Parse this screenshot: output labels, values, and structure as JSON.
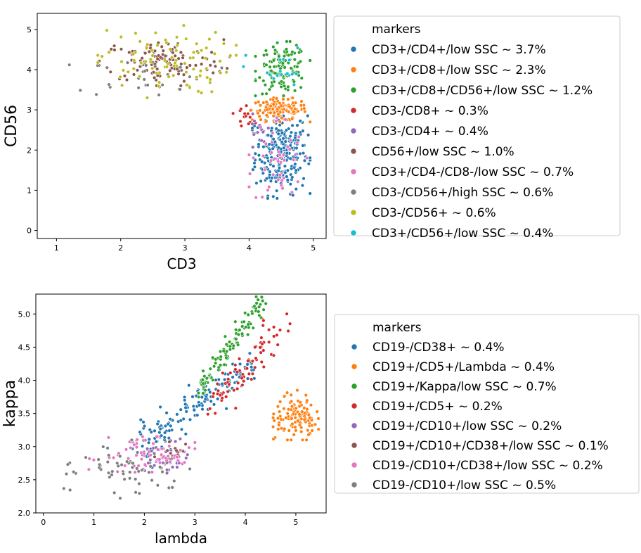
{
  "chart_data": [
    {
      "type": "scatter",
      "xlabel": "CD3",
      "ylabel": "CD56",
      "xlim": [
        0.7,
        5.2
      ],
      "ylim": [
        -0.2,
        5.4
      ],
      "xticks": [
        1,
        2,
        3,
        4,
        5
      ],
      "yticks": [
        0,
        1,
        2,
        3,
        4,
        5
      ],
      "grid": false,
      "legend_position": "right",
      "legend_title": "markers",
      "series": [
        {
          "name": "CD3+/CD4+/low SSC ~ 3.7%",
          "color": "#1f77b4",
          "x_range": [
            4.05,
            4.95
          ],
          "y_range": [
            0.8,
            3.1
          ],
          "n": 260
        },
        {
          "name": "CD3+/CD8+/low SSC ~ 2.3%",
          "color": "#ff7f0e",
          "x_range": [
            4.0,
            4.95
          ],
          "y_range": [
            2.7,
            3.3
          ],
          "n": 140
        },
        {
          "name": "CD3+/CD8+/CD56+/low SSC ~ 1.2%",
          "color": "#2ca02c",
          "x_range": [
            4.1,
            4.95
          ],
          "y_range": [
            3.35,
            4.7
          ],
          "n": 120
        },
        {
          "name": "CD3-/CD8+ ~ 0.3%",
          "color": "#d62728",
          "x_range": [
            3.75,
            4.1
          ],
          "y_range": [
            2.6,
            3.2
          ],
          "n": 14
        },
        {
          "name": "CD3-/CD4+ ~ 0.4%",
          "color": "#9467bd",
          "x_range": [
            3.95,
            4.3
          ],
          "y_range": [
            1.8,
            2.9
          ],
          "n": 16
        },
        {
          "name": "CD56+/low SSC ~ 1.0%",
          "color": "#8c564b",
          "x_range": [
            1.6,
            3.7
          ],
          "y_range": [
            3.6,
            4.8
          ],
          "n": 110
        },
        {
          "name": "CD3+/CD4-/CD8-/low SSC ~ 0.7%",
          "color": "#e377c2",
          "x_range": [
            4.0,
            4.9
          ],
          "y_range": [
            0.5,
            3.0
          ],
          "n": 50
        },
        {
          "name": "CD3-/CD56+/high SSC ~ 0.6%",
          "color": "#7f7f7f",
          "x_range": [
            1.2,
            3.6
          ],
          "y_range": [
            3.3,
            4.4
          ],
          "n": 30
        },
        {
          "name": "CD3-/CD56+ ~ 0.6%",
          "color": "#bcbd22",
          "x_range": [
            1.5,
            3.8
          ],
          "y_range": [
            3.3,
            5.1
          ],
          "n": 90
        },
        {
          "name": "CD3+/CD56+/low SSC ~ 0.4%",
          "color": "#17becf",
          "x_range": [
            3.9,
            4.95
          ],
          "y_range": [
            3.3,
            4.6
          ],
          "n": 18
        }
      ]
    },
    {
      "type": "scatter",
      "xlabel": "lambda",
      "ylabel": "kappa",
      "xlim": [
        -0.15,
        5.6
      ],
      "ylim": [
        2.0,
        5.3
      ],
      "xticks": [
        0,
        1,
        2,
        3,
        4,
        5
      ],
      "yticks": [
        2.0,
        2.5,
        3.0,
        3.5,
        4.0,
        4.5,
        5.0
      ],
      "ytick_labels": [
        "2.0",
        "2.5",
        "3.0",
        "3.5",
        "4.0",
        "4.5",
        "5.0"
      ],
      "grid": false,
      "legend_position": "right",
      "legend_title": "markers",
      "series": [
        {
          "name": "CD19-/CD38+ ~ 0.4%",
          "color": "#1f77b4",
          "trend": [
            [
              1.9,
              3.0
            ],
            [
              4.1,
              4.2
            ]
          ],
          "spread": 0.15,
          "n": 150
        },
        {
          "name": "CD19+/CD5+/Lambda ~ 0.4%",
          "color": "#ff7f0e",
          "x_range": [
            4.55,
            5.45
          ],
          "y_range": [
            3.1,
            3.85
          ],
          "n": 120
        },
        {
          "name": "CD19+/Kappa/low SSC ~ 0.7%",
          "color": "#2ca02c",
          "trend": [
            [
              3.1,
              3.85
            ],
            [
              4.35,
              5.2
            ]
          ],
          "spread": 0.08,
          "n": 110
        },
        {
          "name": "CD19+/CD5+ ~ 0.2%",
          "color": "#d62728",
          "trend": [
            [
              3.3,
              3.6
            ],
            [
              4.8,
              4.8
            ]
          ],
          "spread": 0.15,
          "n": 75
        },
        {
          "name": "CD19+/CD10+/low SSC ~ 0.2%",
          "color": "#9467bd",
          "x_range": [
            1.7,
            2.9
          ],
          "y_range": [
            2.55,
            3.15
          ],
          "n": 40
        },
        {
          "name": "CD19+/CD10+/CD38+/low SSC ~ 0.1%",
          "color": "#8c564b",
          "x_range": [
            1.9,
            3.0
          ],
          "y_range": [
            2.7,
            3.2
          ],
          "n": 20
        },
        {
          "name": "CD19-/CD10+/CD38+/low SSC ~ 0.2%",
          "color": "#e377c2",
          "x_range": [
            0.9,
            3.0
          ],
          "y_range": [
            2.5,
            3.15
          ],
          "n": 70
        },
        {
          "name": "CD19-/CD10+/low SSC ~ 0.5%",
          "color": "#7f7f7f",
          "x_range": [
            0.4,
            2.9
          ],
          "y_range": [
            2.2,
            3.1
          ],
          "n": 60
        }
      ]
    }
  ]
}
